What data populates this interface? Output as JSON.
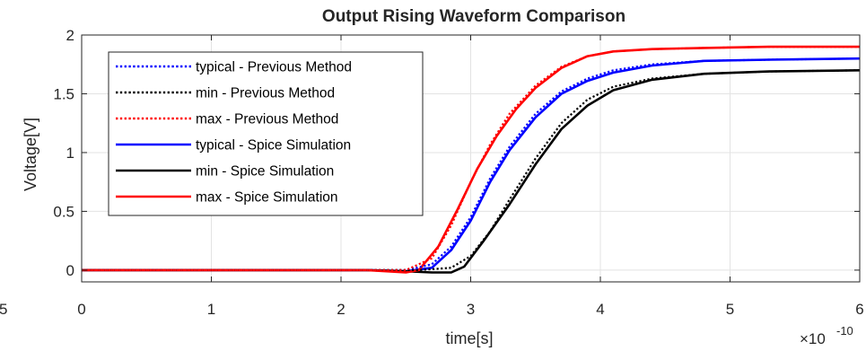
{
  "chart_data": {
    "type": "line",
    "title": "Output Rising Waveform Comparison",
    "xlabel": "time[s]",
    "ylabel": "Voltage[V]",
    "x_exponent_label": "×10",
    "x_exponent_power": "-10",
    "x_scale": 1e-10,
    "xlim": [
      0,
      6
    ],
    "ylim": [
      -0.1,
      2
    ],
    "x_ticks": [
      "0",
      "1",
      "2",
      "3",
      "4",
      "5",
      "6"
    ],
    "x_tick_values": [
      0,
      1,
      2,
      3,
      4,
      5,
      6
    ],
    "y_ticks": [
      "0",
      "0.5",
      "1",
      "1.5",
      "2"
    ],
    "y_tick_values": [
      0,
      0.5,
      1,
      1.5,
      2
    ],
    "partial_left_label": "5",
    "grid": true,
    "legend_position": "top-left",
    "series": [
      {
        "name": "typical - Previous Method",
        "color": "#0000ff",
        "style": "dotted",
        "x": [
          0,
          2.2,
          2.5,
          2.7,
          2.85,
          3.0,
          3.15,
          3.3,
          3.5,
          3.7,
          3.9,
          4.1,
          4.4,
          4.8,
          5.3,
          6.0
        ],
        "y": [
          0,
          0,
          0,
          0.05,
          0.2,
          0.45,
          0.78,
          1.05,
          1.33,
          1.52,
          1.63,
          1.7,
          1.75,
          1.78,
          1.79,
          1.8
        ]
      },
      {
        "name": "min - Previous Method",
        "color": "#000000",
        "style": "dotted",
        "x": [
          0,
          2.2,
          2.6,
          2.85,
          3.0,
          3.15,
          3.3,
          3.5,
          3.7,
          3.9,
          4.1,
          4.4,
          4.8,
          5.3,
          6.0
        ],
        "y": [
          0,
          0,
          0,
          0.02,
          0.12,
          0.33,
          0.6,
          0.95,
          1.25,
          1.45,
          1.56,
          1.63,
          1.67,
          1.69,
          1.7
        ]
      },
      {
        "name": "max - Previous Method",
        "color": "#ff0000",
        "style": "dotted",
        "x": [
          0,
          2.2,
          2.5,
          2.7,
          2.85,
          3.0,
          3.15,
          3.3,
          3.5,
          3.7,
          3.9,
          4.1,
          4.4,
          4.8,
          5.3,
          6.0
        ],
        "y": [
          0,
          0,
          0,
          0.1,
          0.38,
          0.75,
          1.07,
          1.33,
          1.57,
          1.73,
          1.82,
          1.86,
          1.88,
          1.89,
          1.9,
          1.9
        ]
      },
      {
        "name": "typical - Spice Simulation",
        "color": "#0000ff",
        "style": "solid",
        "x": [
          0,
          2.2,
          2.5,
          2.7,
          2.85,
          3.0,
          3.15,
          3.3,
          3.5,
          3.7,
          3.9,
          4.1,
          4.4,
          4.8,
          5.3,
          6.0
        ],
        "y": [
          0,
          0,
          -0.01,
          0.02,
          0.17,
          0.42,
          0.75,
          1.02,
          1.3,
          1.5,
          1.61,
          1.68,
          1.74,
          1.78,
          1.79,
          1.8
        ]
      },
      {
        "name": "min - Spice Simulation",
        "color": "#000000",
        "style": "solid",
        "x": [
          0,
          2.2,
          2.5,
          2.7,
          2.85,
          2.95,
          3.1,
          3.3,
          3.5,
          3.7,
          3.9,
          4.1,
          4.4,
          4.8,
          5.3,
          6.0
        ],
        "y": [
          0,
          0,
          -0.01,
          -0.02,
          -0.02,
          0.03,
          0.25,
          0.56,
          0.9,
          1.2,
          1.4,
          1.53,
          1.62,
          1.67,
          1.69,
          1.7
        ]
      },
      {
        "name": "max - Spice Simulation",
        "color": "#ff0000",
        "style": "solid",
        "x": [
          0,
          2.2,
          2.5,
          2.6,
          2.75,
          2.9,
          3.05,
          3.2,
          3.35,
          3.5,
          3.7,
          3.9,
          4.1,
          4.4,
          4.8,
          5.3,
          6.0
        ],
        "y": [
          0,
          0,
          -0.02,
          0.0,
          0.2,
          0.52,
          0.86,
          1.14,
          1.37,
          1.55,
          1.72,
          1.82,
          1.86,
          1.88,
          1.89,
          1.9,
          1.9
        ]
      }
    ]
  }
}
